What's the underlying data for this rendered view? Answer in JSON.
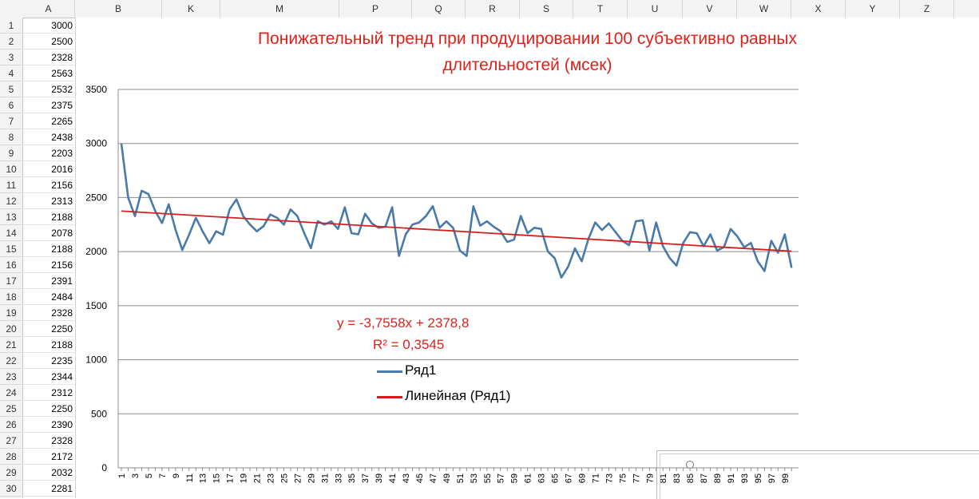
{
  "spreadsheet": {
    "column_headers": [
      "A",
      "B",
      "K",
      "M",
      "P",
      "Q",
      "R",
      "S",
      "T",
      "U",
      "V",
      "W",
      "X",
      "Y",
      "Z"
    ],
    "row_numbers": [
      "1",
      "2",
      "3",
      "4",
      "5",
      "6",
      "7",
      "8",
      "9",
      "10",
      "11",
      "12",
      "13",
      "14",
      "15",
      "16",
      "17",
      "18",
      "19",
      "20",
      "21",
      "22",
      "23",
      "24",
      "25",
      "26",
      "27",
      "28",
      "29",
      "30"
    ],
    "column_a_values": [
      "3000",
      "2500",
      "2328",
      "2563",
      "2532",
      "2375",
      "2265",
      "2438",
      "2203",
      "2016",
      "2156",
      "2313",
      "2188",
      "2078",
      "2188",
      "2156",
      "2391",
      "2484",
      "2328",
      "2250",
      "2188",
      "2235",
      "2344",
      "2312",
      "2250",
      "2390",
      "2328",
      "2172",
      "2032",
      "2281"
    ]
  },
  "chart_data": {
    "type": "line",
    "title": "Понижательный тренд при продуцировании 100 субъективно равных длительностей (мсек)",
    "title_lines": [
      "Понижательный тренд при продуцировании 100 субъективно равных",
      "длительностей (мсек)"
    ],
    "xlabel": "",
    "ylabel": "",
    "ylim": [
      0,
      3500
    ],
    "yticks": [
      "0",
      "500",
      "1000",
      "1500",
      "2000",
      "2500",
      "3000",
      "3500"
    ],
    "xlim": [
      1,
      100
    ],
    "xtick_labels_shown": "odd integers 1-99",
    "grid": true,
    "legend_placement": "center-bottom",
    "series": [
      {
        "name": "Ряд1",
        "color": "#4a7aa9",
        "values": [
          3000,
          2500,
          2328,
          2563,
          2532,
          2375,
          2265,
          2438,
          2203,
          2016,
          2156,
          2313,
          2188,
          2078,
          2188,
          2156,
          2391,
          2484,
          2328,
          2250,
          2188,
          2235,
          2344,
          2312,
          2250,
          2390,
          2328,
          2172,
          2032,
          2281,
          2250,
          2280,
          2210,
          2410,
          2170,
          2160,
          2350,
          2260,
          2220,
          2230,
          2410,
          1960,
          2160,
          2250,
          2270,
          2330,
          2420,
          2220,
          2280,
          2220,
          2010,
          1960,
          2420,
          2240,
          2280,
          2230,
          2190,
          2090,
          2110,
          2330,
          2170,
          2220,
          2210,
          2000,
          1940,
          1760,
          1860,
          2030,
          1910,
          2120,
          2270,
          2200,
          2260,
          2180,
          2100,
          2060,
          2280,
          2290,
          2010,
          2270,
          2050,
          1940,
          1870,
          2080,
          2180,
          2170,
          2050,
          2160,
          2010,
          2040,
          2210,
          2140,
          2040,
          2080,
          1910,
          1820,
          2100,
          1990,
          2160,
          1850
        ]
      },
      {
        "name": "Линейная (Ряд1)",
        "color": "#d41f1f",
        "type": "trendline",
        "slope": -3.7558,
        "intercept": 2378.8
      }
    ],
    "annotations": {
      "equation": "y = -3,7558x  + 2378,8",
      "r_squared": "R² = 0,3545"
    },
    "legend": [
      "Ряд1",
      "Линейная (Ряд1)"
    ]
  }
}
